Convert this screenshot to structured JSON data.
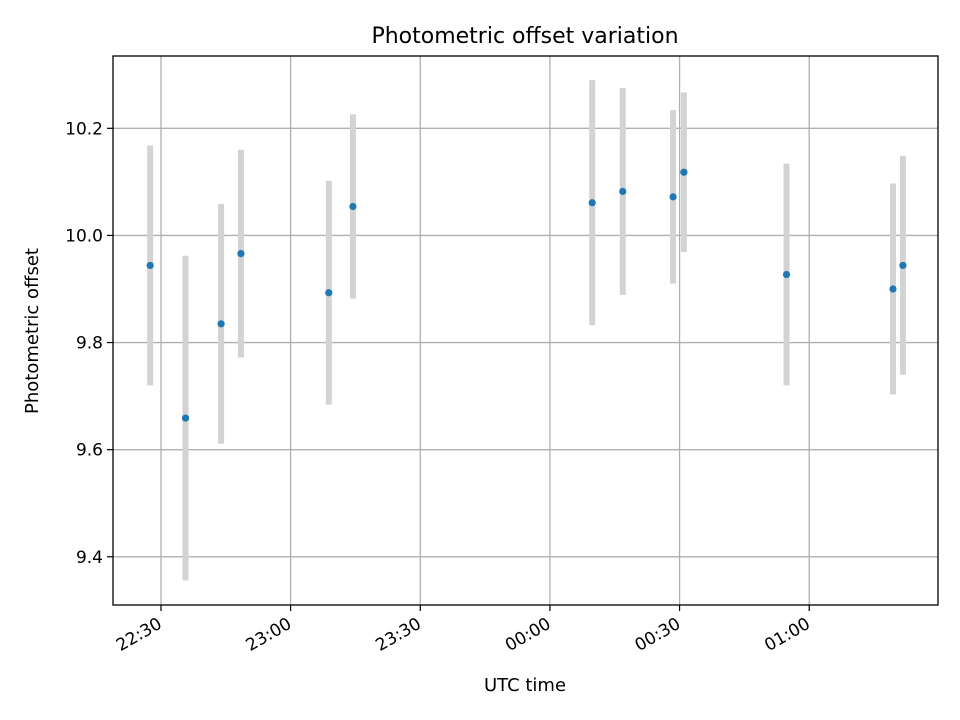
{
  "chart_data": {
    "type": "scatter",
    "title": "Photometric offset variation",
    "xlabel": "UTC time",
    "ylabel": "Photometric offset",
    "x_ticks": [
      "22:30",
      "23:00",
      "23:30",
      "00:00",
      "00:30",
      "01:00"
    ],
    "y_ticks": [
      "9.4",
      "9.6",
      "9.8",
      "10.0",
      "10.2"
    ],
    "ylim": [
      9.31,
      10.335
    ],
    "xlim": [
      "22:18:54",
      "01:29:48"
    ],
    "grid": true,
    "point_color": "#1f77b4",
    "errorbar_color": "#d3d3d3",
    "series": [
      {
        "points": [
          {
            "x": "22:27:30",
            "y": 9.944,
            "err": 0.224
          },
          {
            "x": "22:35:41",
            "y": 9.659,
            "err": 0.303
          },
          {
            "x": "22:43:55",
            "y": 9.835,
            "err": 0.224
          },
          {
            "x": "22:48:30",
            "y": 9.966,
            "err": 0.194
          },
          {
            "x": "23:08:50",
            "y": 9.893,
            "err": 0.209
          },
          {
            "x": "23:14:25",
            "y": 10.054,
            "err": 0.172
          },
          {
            "x": "00:09:47",
            "y": 10.061,
            "err": 0.229
          },
          {
            "x": "00:16:51",
            "y": 10.082,
            "err": 0.193
          },
          {
            "x": "00:28:30",
            "y": 10.072,
            "err": 0.162
          },
          {
            "x": "00:31:00",
            "y": 10.118,
            "err": 0.149
          },
          {
            "x": "00:54:45",
            "y": 9.927,
            "err": 0.207
          },
          {
            "x": "01:19:23",
            "y": 9.9,
            "err": 0.197
          },
          {
            "x": "01:21:41",
            "y": 9.944,
            "err": 0.204
          }
        ]
      }
    ]
  }
}
